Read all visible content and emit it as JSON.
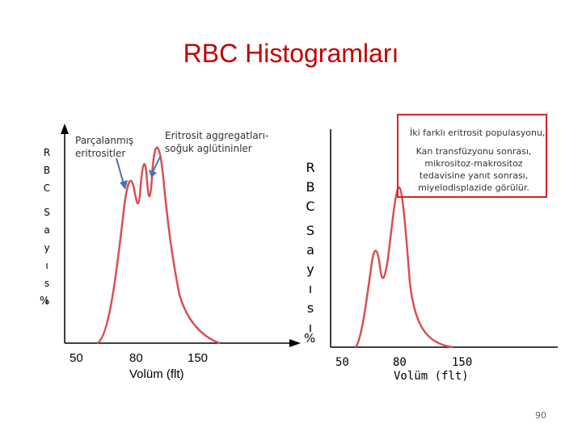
{
  "title": "RBC Histogramları",
  "left_panel": {
    "ylabel_letters": [
      "R",
      "B",
      "C",
      "S",
      "a",
      "y",
      "ı",
      "s",
      "ı"
    ],
    "ylabel_percent": "%",
    "annotation_fragmented": "Parçalanmış\neritrositler",
    "annotation_aggregates": "Eritrosit aggregatları-\nsoğuk aglütininler",
    "xticks": [
      "50",
      "80",
      "150"
    ],
    "xlabel": "Volüm (flt)"
  },
  "right_panel": {
    "ylabel_letters": [
      "R",
      "B",
      "C",
      "S",
      "a",
      "y",
      "ı",
      "s",
      "ı"
    ],
    "ylabel_percent": "%",
    "annotation_two_populations": "İki farklı eritrosit populasyonu,",
    "annotation_detail": "Kan transfüzyonu sonrası, mikrositoz-makrositoz tedavisine yanıt sonrası, miyelodisplazide görülür.",
    "xticks": [
      "50",
      "80",
      "150"
    ],
    "xlabel": "Volüm (flt)"
  },
  "colors": {
    "title": "#c00000",
    "curve": "#d85050",
    "axis": "#000000",
    "box": "#e02020",
    "arrow": "#5070b0"
  },
  "page_number": "90"
}
